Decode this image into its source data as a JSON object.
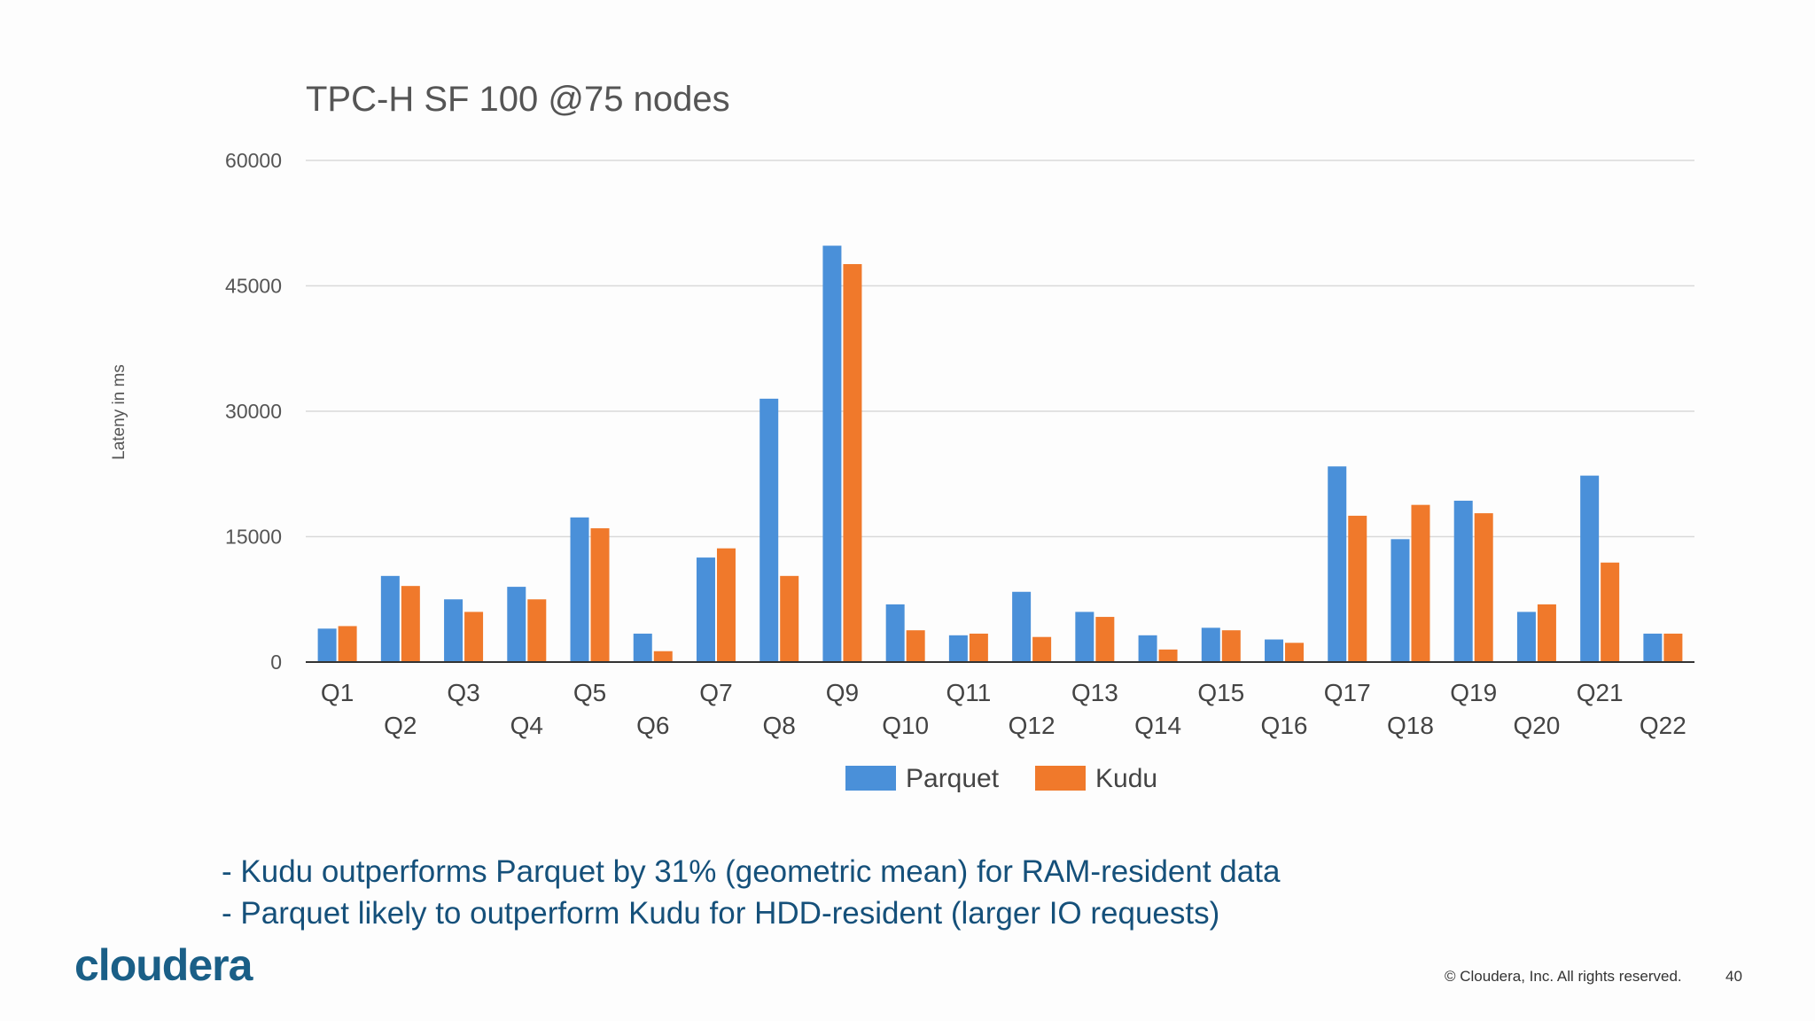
{
  "chart_data": {
    "type": "bar",
    "title": "TPC-H SF 100 @75 nodes",
    "ylabel": "Lateny in ms",
    "xlabel": "",
    "ylim": [
      0,
      60000
    ],
    "yticks": [
      0,
      15000,
      30000,
      45000,
      60000
    ],
    "grid": true,
    "legend_position": "bottom",
    "categories": [
      "Q1",
      "Q2",
      "Q3",
      "Q4",
      "Q5",
      "Q6",
      "Q7",
      "Q8",
      "Q9",
      "Q10",
      "Q11",
      "Q12",
      "Q13",
      "Q14",
      "Q15",
      "Q16",
      "Q17",
      "Q18",
      "Q19",
      "Q20",
      "Q21",
      "Q22"
    ],
    "series": [
      {
        "name": "Parquet",
        "color": "#4a90d9",
        "values": [
          4000,
          10300,
          7500,
          9000,
          17300,
          3400,
          12500,
          31500,
          49800,
          6900,
          3200,
          8400,
          6000,
          3200,
          4100,
          2700,
          23400,
          14700,
          19300,
          6000,
          22300,
          3400
        ]
      },
      {
        "name": "Kudu",
        "color": "#f0792b",
        "values": [
          4300,
          9100,
          6000,
          7500,
          16000,
          1300,
          13600,
          10300,
          47600,
          3800,
          3400,
          3000,
          5400,
          1500,
          3800,
          2300,
          17500,
          18800,
          17800,
          6900,
          11900,
          3400
        ]
      }
    ]
  },
  "bullets": [
    "- Kudu outperforms Parquet by 31% (geometric mean) for RAM-resident data",
    "- Parquet likely to outperform Kudu for HDD-resident (larger IO requests)"
  ],
  "footer": {
    "logo": "cloudera",
    "copyright": "© Cloudera, Inc. All rights reserved.",
    "page_number": "40"
  }
}
